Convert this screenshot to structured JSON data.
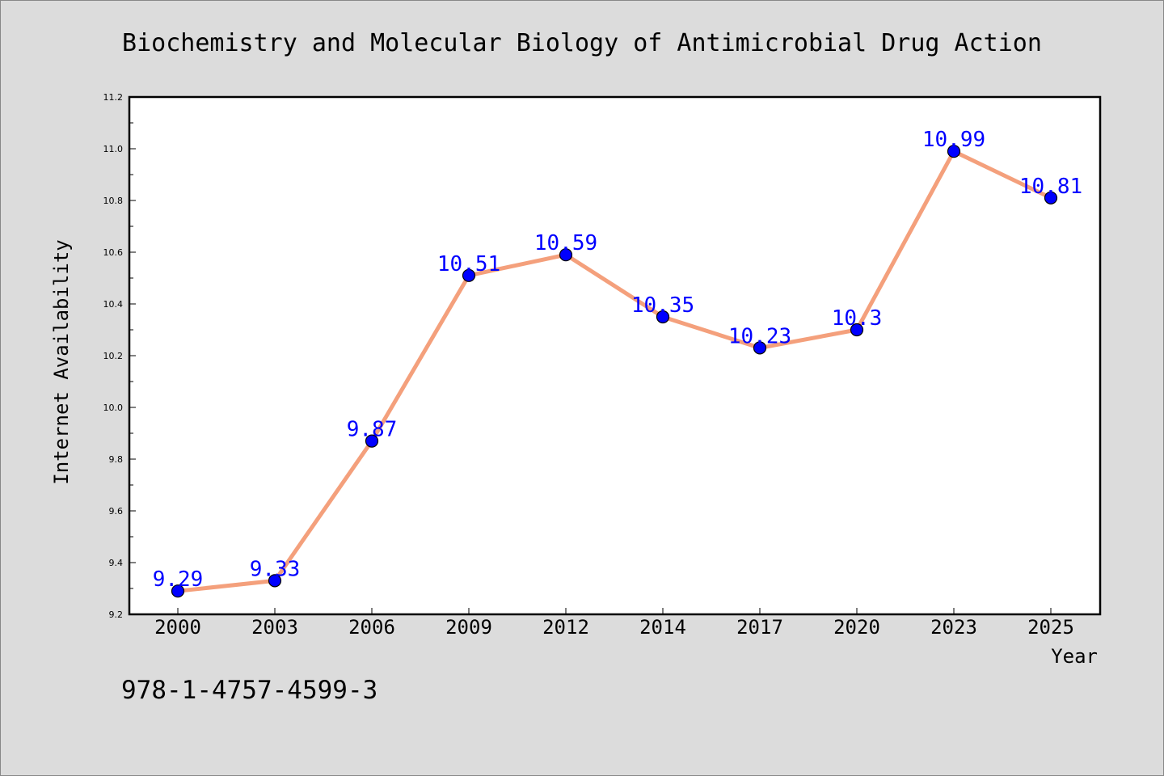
{
  "chart_data": {
    "type": "line",
    "title": "Biochemistry and Molecular Biology of Antimicrobial Drug Action",
    "xlabel": "Year",
    "ylabel": "Internet Availability",
    "categories": [
      "2000",
      "2003",
      "2006",
      "2009",
      "2012",
      "2014",
      "2017",
      "2020",
      "2023",
      "2025"
    ],
    "values": [
      9.29,
      9.33,
      9.87,
      10.51,
      10.59,
      10.35,
      10.23,
      10.3,
      10.99,
      10.81
    ],
    "data_labels": [
      "9.29",
      "9.33",
      "9.87",
      "10.51",
      "10.59",
      "10.35",
      "10.23",
      "10.3",
      "10.99",
      "10.81"
    ],
    "ylim": [
      9.2,
      11.2
    ],
    "yticks": [
      "9.2",
      "9.4",
      "9.6",
      "9.8",
      "10.0",
      "10.2",
      "10.4",
      "10.6",
      "10.8",
      "11.0",
      "11.2"
    ],
    "grid": false,
    "legend": "none",
    "colors": {
      "line": "#f4a07c",
      "marker": "#0000ff",
      "data_label": "#0000ff",
      "plot_background": "#ffffff",
      "figure_background": "#dcdcdc"
    }
  },
  "footer": {
    "isbn": "978-1-4757-4599-3"
  }
}
